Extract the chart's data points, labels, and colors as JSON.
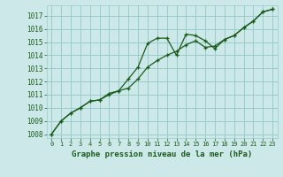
{
  "title": "Graphe pression niveau de la mer (hPa)",
  "background_color": "#cce8e8",
  "grid_color": "#99cccc",
  "line_color": "#1a5c1a",
  "xlim": [
    -0.5,
    23.5
  ],
  "ylim": [
    1007.7,
    1017.8
  ],
  "yticks": [
    1008,
    1009,
    1010,
    1011,
    1012,
    1013,
    1014,
    1015,
    1016,
    1017
  ],
  "xticks": [
    0,
    1,
    2,
    3,
    4,
    5,
    6,
    7,
    8,
    9,
    10,
    11,
    12,
    13,
    14,
    15,
    16,
    17,
    18,
    19,
    20,
    21,
    22,
    23
  ],
  "series1_x": [
    0,
    1,
    2,
    3,
    4,
    5,
    6,
    7,
    8,
    9,
    10,
    11,
    12,
    13,
    14,
    15,
    16,
    17,
    18,
    19,
    20,
    21,
    22,
    23
  ],
  "series1_y": [
    1008.0,
    1009.0,
    1009.6,
    1010.0,
    1010.5,
    1010.6,
    1011.1,
    1011.3,
    1012.2,
    1013.1,
    1014.9,
    1015.3,
    1015.3,
    1014.0,
    1015.6,
    1015.5,
    1015.1,
    1014.5,
    1015.2,
    1015.5,
    1016.1,
    1016.6,
    1017.3,
    1017.5
  ],
  "series2_x": [
    0,
    1,
    2,
    3,
    4,
    5,
    6,
    7,
    8,
    9,
    10,
    11,
    12,
    13,
    14,
    15,
    16,
    17,
    18,
    19,
    20,
    21,
    22,
    23
  ],
  "series2_y": [
    1008.0,
    1009.0,
    1009.6,
    1010.0,
    1010.5,
    1010.6,
    1011.0,
    1011.3,
    1011.5,
    1012.2,
    1013.1,
    1013.6,
    1014.0,
    1014.3,
    1014.8,
    1015.1,
    1014.6,
    1014.7,
    1015.2,
    1015.5,
    1016.1,
    1016.6,
    1017.3,
    1017.5
  ],
  "ylabel_fontsize": 5.5,
  "xlabel_fontsize": 6.5,
  "xtick_fontsize": 5.0,
  "ytick_fontsize": 5.5
}
